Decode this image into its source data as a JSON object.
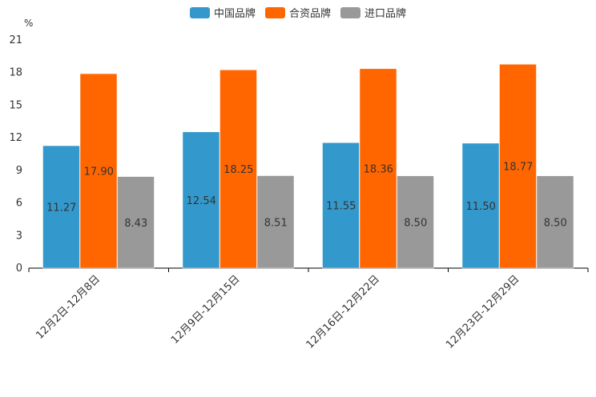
{
  "chart_data": {
    "type": "bar",
    "unit_label": "%",
    "categories": [
      "12月2日-12月8日",
      "12月9日-12月15日",
      "12月16日-12月22日",
      "12月23日-12月29日"
    ],
    "series": [
      {
        "name": "中国品牌",
        "color": "#3399cc",
        "values": [
          11.27,
          12.54,
          11.55,
          11.5
        ],
        "labels": [
          "11.27",
          "12.54",
          "11.55",
          "11.50"
        ]
      },
      {
        "name": "合资品牌",
        "color": "#ff6600",
        "values": [
          17.9,
          18.25,
          18.36,
          18.77
        ],
        "labels": [
          "17.90",
          "18.25",
          "18.36",
          "18.77"
        ]
      },
      {
        "name": "进口品牌",
        "color": "#999999",
        "values": [
          8.43,
          8.51,
          8.5,
          8.5
        ],
        "labels": [
          "8.43",
          "8.51",
          "8.50",
          "8.50"
        ]
      }
    ],
    "yticks": [
      0,
      3,
      6,
      9,
      12,
      15,
      18,
      21
    ],
    "ylim": [
      0,
      21
    ],
    "legend_position": "top-center",
    "grid": false
  }
}
